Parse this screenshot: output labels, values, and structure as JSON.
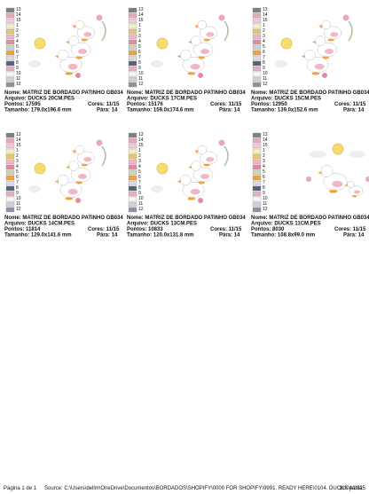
{
  "threads": [
    {
      "n": "13",
      "color": "#7a7f8c"
    },
    {
      "n": "14",
      "color": "#e9a7b9"
    },
    {
      "n": "15",
      "color": "#f3c9d4"
    },
    {
      "n": "1",
      "color": "#f6f0c8"
    },
    {
      "n": "2",
      "color": "#e8c86a"
    },
    {
      "n": "3",
      "color": "#f3b6c4"
    },
    {
      "n": "4",
      "color": "#e68aa3"
    },
    {
      "n": "5",
      "color": "#c9d6c0"
    },
    {
      "n": "6",
      "color": "#f2a23c"
    },
    {
      "n": "7",
      "color": "#dcdce0"
    },
    {
      "n": "8",
      "color": "#5a6178"
    },
    {
      "n": "9",
      "color": "#e7b0be"
    },
    {
      "n": "10",
      "color": "#f7f7f7"
    },
    {
      "n": "11",
      "color": "#cfd3d8"
    },
    {
      "n": "12",
      "color": "#8d93a3"
    }
  ],
  "cells": [
    {
      "name": "Nome: MATRIZ DE BORDADO PATINHO GB034",
      "file": "Arquivo: DUCKS 20CM.PES",
      "stitches": "Pontos: 17595",
      "colors": "Cores: 11/15",
      "size": "Tamanho: 179.0x196.6 mm",
      "stops": "Pára: 14"
    },
    {
      "name": "Nome: MATRIZ DE BORDADO PATINHO GB034",
      "file": "Arquivo: DUCKS 17CM.PES",
      "stitches": "Pontos: 15176",
      "colors": "Cores: 11/15",
      "size": "Tamanho: 159.0x174.6 mm",
      "stops": "Pára: 14"
    },
    {
      "name": "Nome: MATRIZ DE BORDADO PATINHO GB034",
      "file": "Arquivo: DUCKS 15CM.PES",
      "stitches": "Pontos: 12950",
      "colors": "Cores: 11/15",
      "size": "Tamanho: 139.0x152.6 mm",
      "stops": "Pára: 14"
    },
    {
      "name": "Nome: MATRIZ DE BORDADO PATINHO GB034",
      "file": "Arquivo: DUCKS 14CM.PES",
      "stitches": "Pontos: 11814",
      "colors": "Cores: 11/15",
      "size": "Tamanho: 129.0x141.6 mm",
      "stops": "Pára: 14"
    },
    {
      "name": "Nome: MATRIZ DE BORDADO PATINHO GB034",
      "file": "Arquivo: DUCKS 13CM.PES",
      "stitches": "Pontos: 10833",
      "colors": "Cores: 11/15",
      "size": "Tamanho: 120.0x131.8 mm",
      "stops": "Pára: 14"
    },
    {
      "name": "Nome: MATRIZ DE BORDADO PATINHO GB034",
      "file": "Arquivo: DUCKS 11CM.PES",
      "stitches": "Pontos: 8030",
      "colors": "Cores: 11/15",
      "size": "Tamanho: 108.8x99.0 mm",
      "stops": "Pára: 14"
    }
  ],
  "footer": {
    "page": "Página 1 de 1",
    "source": "Source: C:\\Users\\dellm\\OneDrive\\Documentos\\BORDADOS\\SHOPIFY\\0000 FOR SHOPIFY\\9991. READY HERE\\0104. DUCKS pasta",
    "date": "11/04/2025"
  }
}
